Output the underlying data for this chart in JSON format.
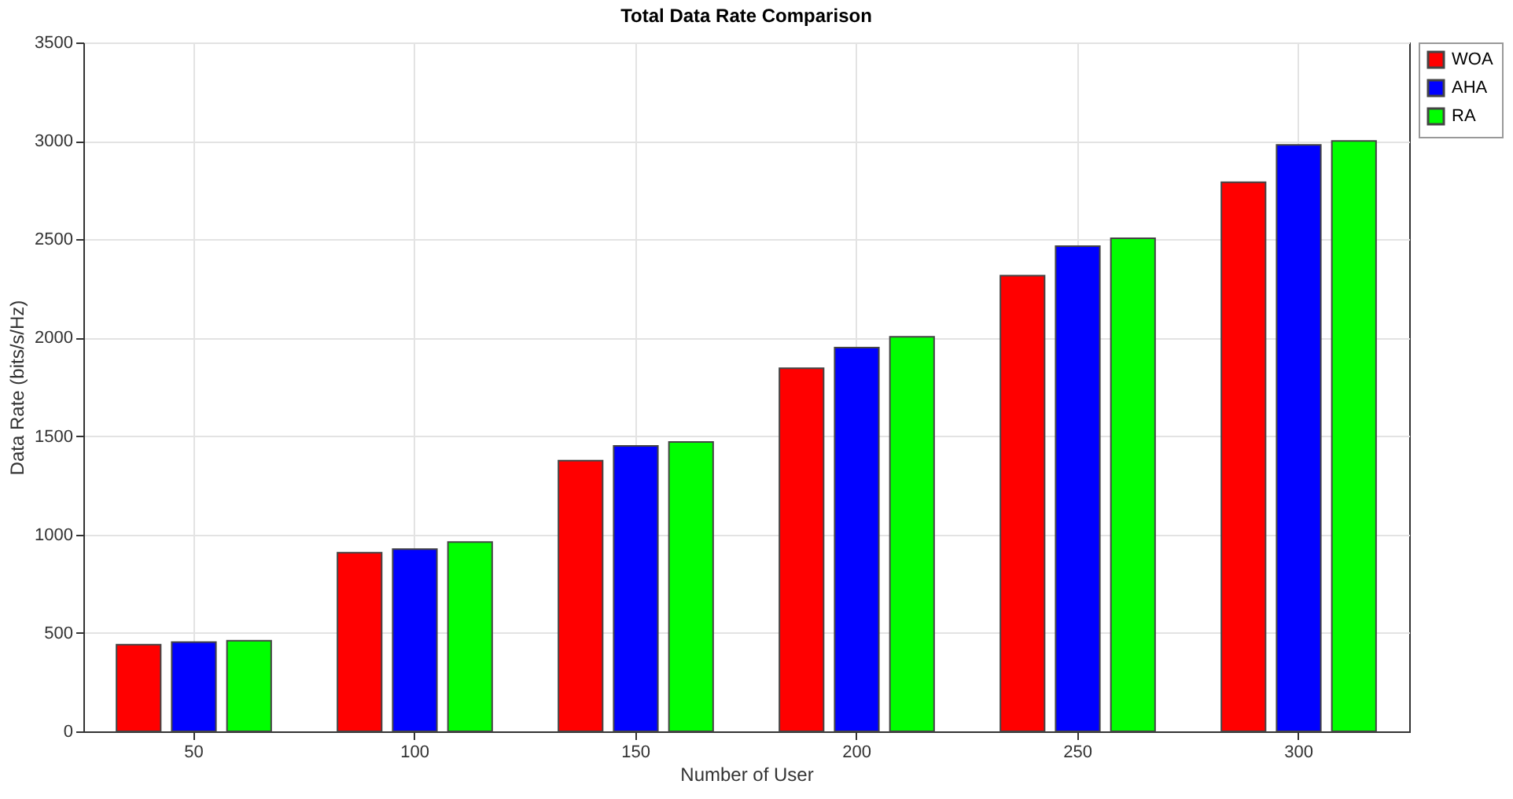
{
  "chart_data": {
    "type": "bar",
    "title": "Total Data Rate Comparison",
    "xlabel": "Number of User",
    "ylabel": "Data Rate (bits/s/Hz)",
    "categories": [
      "50",
      "100",
      "150",
      "200",
      "250",
      "300"
    ],
    "series": [
      {
        "name": "WOA",
        "color": "#ff0000",
        "values": [
          440,
          908,
          1375,
          1845,
          2315,
          2790
        ]
      },
      {
        "name": "AHA",
        "color": "#0000ff",
        "values": [
          453,
          926,
          1450,
          1950,
          2465,
          2980
        ]
      },
      {
        "name": "RA",
        "color": "#00ff00",
        "values": [
          460,
          962,
          1470,
          2005,
          2505,
          3000
        ]
      }
    ],
    "ylim": [
      0,
      3500
    ],
    "yticks": [
      0,
      500,
      1000,
      1500,
      2000,
      2500,
      3000,
      3500
    ],
    "grid": true,
    "legend": "right"
  }
}
